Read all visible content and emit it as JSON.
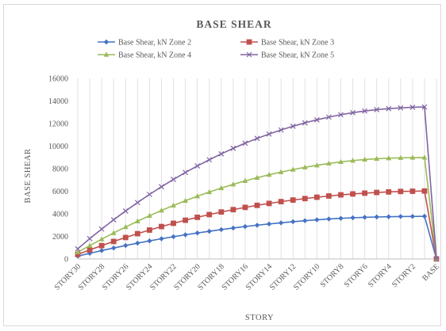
{
  "chart_data": {
    "type": "line",
    "title": "BASE SHEAR",
    "xlabel": "STORY",
    "ylabel": "BASE SHEAR",
    "ylim": [
      0,
      16000
    ],
    "yticks": [
      0,
      2000,
      4000,
      6000,
      8000,
      10000,
      12000,
      14000,
      16000
    ],
    "grid": "vertical",
    "legend": "top",
    "categories": [
      "STORY30",
      "STORY29",
      "STORY28",
      "STORY27",
      "STORY26",
      "STORY25",
      "STORY24",
      "STORY23",
      "STORY22",
      "STORY21",
      "STORY20",
      "STORY19",
      "STORY18",
      "STORY17",
      "STORY16",
      "STORY15",
      "STORY14",
      "STORY13",
      "STORY12",
      "STORY11",
      "STORY10",
      "STORY9",
      "STORY8",
      "STORY7",
      "STORY6",
      "STORY5",
      "STORY4",
      "STORY3",
      "STORY2",
      "STORY1",
      "BASE"
    ],
    "xtick_labels": [
      "STORY30",
      "STORY28",
      "STORY26",
      "STORY24",
      "STORY22",
      "STORY20",
      "STORY18",
      "STORY16",
      "STORY14",
      "STORY12",
      "STORY10",
      "STORY8",
      "STORY6",
      "STORY4",
      "STORY2",
      "BASE"
    ],
    "series": [
      {
        "name": "Base Shear, kN Zone 2",
        "color": "#4472c4",
        "marker": "diamond",
        "values": [
          250,
          500,
          740,
          970,
          1190,
          1400,
          1600,
          1790,
          1970,
          2140,
          2300,
          2450,
          2600,
          2740,
          2870,
          2990,
          3100,
          3200,
          3300,
          3390,
          3470,
          3540,
          3600,
          3650,
          3690,
          3720,
          3740,
          3760,
          3770,
          3780,
          0
        ]
      },
      {
        "name": "Base Shear, kN Zone 3",
        "color": "#c0504d",
        "marker": "square",
        "values": [
          400,
          800,
          1180,
          1550,
          1900,
          2240,
          2560,
          2870,
          3160,
          3430,
          3690,
          3930,
          4160,
          4370,
          4570,
          4750,
          4920,
          5080,
          5220,
          5350,
          5470,
          5580,
          5680,
          5760,
          5830,
          5890,
          5940,
          5980,
          6000,
          6020,
          0
        ]
      },
      {
        "name": "Base Shear, kN Zone 4",
        "color": "#9bbb59",
        "marker": "triangle",
        "values": [
          600,
          1180,
          1750,
          2300,
          2830,
          3340,
          3830,
          4300,
          4740,
          5160,
          5560,
          5930,
          6280,
          6610,
          6920,
          7200,
          7460,
          7700,
          7920,
          8120,
          8300,
          8460,
          8600,
          8720,
          8810,
          8880,
          8930,
          8960,
          8980,
          8990,
          0
        ]
      },
      {
        "name": "Base Shear, kN Zone 5",
        "color": "#8064a2",
        "marker": "x",
        "values": [
          900,
          1800,
          2650,
          3470,
          4250,
          5000,
          5720,
          6400,
          7050,
          7660,
          8240,
          8790,
          9310,
          9800,
          10260,
          10680,
          11070,
          11430,
          11760,
          12060,
          12330,
          12570,
          12780,
          12960,
          13110,
          13230,
          13320,
          13390,
          13440,
          13470,
          0
        ]
      }
    ]
  }
}
